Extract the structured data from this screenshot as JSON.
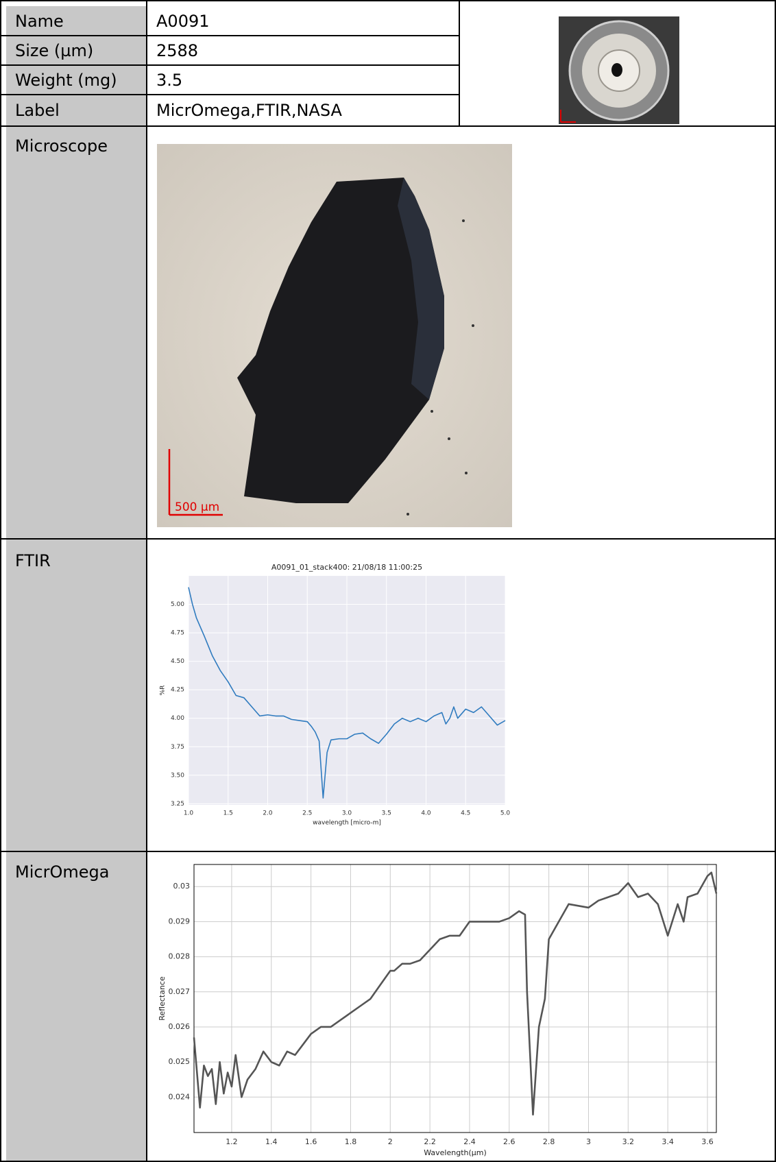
{
  "table": {
    "rows": [
      [
        "Name",
        "A0091"
      ],
      [
        "Size (µm)",
        "2588"
      ],
      [
        "Weight (mg)",
        "3.5"
      ],
      [
        "Label",
        "MicrOmega,FTIR,NASA"
      ]
    ],
    "sections": [
      "Microscope",
      "FTIR",
      "MicrOmega"
    ]
  },
  "microscope": {
    "scale_bar": "500 μm"
  },
  "chart_data": [
    {
      "type": "line",
      "title": "A0091_01_stack400: 21/08/18 11:00:25",
      "x_label": "wavelength [micro-m]",
      "y_label": "%R",
      "xlim": [
        1,
        5
      ],
      "ylim": [
        3.24,
        5.25
      ],
      "xticks": [
        {
          "value": 1,
          "label": "1.0"
        },
        {
          "value": 1.5,
          "label": "1.5"
        },
        {
          "value": 2,
          "label": "2.0"
        },
        {
          "value": 2.5,
          "label": "2.5"
        },
        {
          "value": 3,
          "label": "3.0"
        },
        {
          "value": 3.5,
          "label": "3.5"
        },
        {
          "value": 4,
          "label": "4.0"
        },
        {
          "value": 4.5,
          "label": "4.5"
        },
        {
          "value": 5,
          "label": "5.0"
        }
      ],
      "yticks": [
        {
          "value": 3.25,
          "label": "3.25"
        },
        {
          "value": 3.5,
          "label": "3.50"
        },
        {
          "value": 3.75,
          "label": "3.75"
        },
        {
          "value": 4,
          "label": "4.00"
        },
        {
          "value": 4.25,
          "label": "4.25"
        },
        {
          "value": 4.5,
          "label": "4.50"
        },
        {
          "value": 4.75,
          "label": "4.75"
        },
        {
          "value": 5,
          "label": "5.00"
        }
      ],
      "grid": true,
      "color": "#2f7bbf",
      "plot_background": "#eaeaf2",
      "grid_color": "#ffffff",
      "x": [
        1.0,
        1.05,
        1.1,
        1.2,
        1.3,
        1.4,
        1.5,
        1.6,
        1.7,
        1.8,
        1.9,
        2.0,
        2.1,
        2.2,
        2.3,
        2.4,
        2.5,
        2.55,
        2.6,
        2.65,
        2.7,
        2.75,
        2.8,
        2.9,
        3.0,
        3.1,
        3.2,
        3.3,
        3.4,
        3.5,
        3.6,
        3.7,
        3.8,
        3.9,
        4.0,
        4.1,
        4.2,
        4.25,
        4.3,
        4.35,
        4.4,
        4.5,
        4.6,
        4.7,
        4.8,
        4.9,
        5.0
      ],
      "values": [
        5.15,
        5.0,
        4.88,
        4.72,
        4.55,
        4.42,
        4.32,
        4.2,
        4.18,
        4.1,
        4.02,
        4.03,
        4.02,
        4.02,
        3.99,
        3.98,
        3.97,
        3.93,
        3.88,
        3.8,
        3.3,
        3.7,
        3.81,
        3.82,
        3.82,
        3.86,
        3.87,
        3.82,
        3.78,
        3.86,
        3.95,
        4.0,
        3.97,
        4.0,
        3.97,
        4.02,
        4.05,
        3.95,
        4.0,
        4.1,
        4.0,
        4.08,
        4.05,
        4.1,
        4.02,
        3.94,
        3.98
      ]
    },
    {
      "type": "line",
      "x_label": "Wavelength(μm)",
      "y_label": "Reflectance",
      "xlim": [
        1.01,
        3.645
      ],
      "ylim": [
        0.02299,
        0.03063
      ],
      "xticks": [
        1.2,
        1.4,
        1.6,
        1.8,
        2,
        2.2,
        2.4,
        2.6,
        2.8,
        3,
        3.2,
        3.4,
        3.6
      ],
      "yticks": [
        0.024,
        0.025,
        0.026,
        0.027,
        0.028,
        0.029,
        0.03
      ],
      "grid": true,
      "color": "#555555",
      "plot_background": "#ffffff",
      "grid_color": "#cccccc",
      "x": [
        1.01,
        1.04,
        1.06,
        1.08,
        1.1,
        1.12,
        1.14,
        1.16,
        1.18,
        1.2,
        1.22,
        1.25,
        1.28,
        1.32,
        1.36,
        1.4,
        1.44,
        1.48,
        1.52,
        1.56,
        1.6,
        1.65,
        1.7,
        1.75,
        1.8,
        1.85,
        1.9,
        1.95,
        2.0,
        2.02,
        2.06,
        2.1,
        2.15,
        2.2,
        2.25,
        2.3,
        2.35,
        2.4,
        2.45,
        2.5,
        2.55,
        2.6,
        2.65,
        2.68,
        2.69,
        2.72,
        2.75,
        2.78,
        2.8,
        2.82,
        2.85,
        2.9,
        3.0,
        3.05,
        3.1,
        3.15,
        3.2,
        3.25,
        3.3,
        3.35,
        3.4,
        3.45,
        3.48,
        3.5,
        3.55,
        3.6,
        3.62,
        3.645
      ],
      "values": [
        0.0257,
        0.0237,
        0.0249,
        0.0246,
        0.0248,
        0.0238,
        0.025,
        0.0241,
        0.0247,
        0.0243,
        0.0252,
        0.024,
        0.0245,
        0.0248,
        0.0253,
        0.025,
        0.0249,
        0.0253,
        0.0252,
        0.0255,
        0.0258,
        0.026,
        0.026,
        0.0262,
        0.0264,
        0.0266,
        0.0268,
        0.0272,
        0.0276,
        0.0276,
        0.0278,
        0.0278,
        0.0279,
        0.0282,
        0.0285,
        0.0286,
        0.0286,
        0.029,
        0.029,
        0.029,
        0.029,
        0.0291,
        0.0293,
        0.0292,
        0.027,
        0.0235,
        0.026,
        0.0268,
        0.0285,
        0.0287,
        0.029,
        0.0295,
        0.0294,
        0.0296,
        0.0297,
        0.0298,
        0.0301,
        0.0297,
        0.0298,
        0.0295,
        0.0286,
        0.0295,
        0.029,
        0.0297,
        0.0298,
        0.0303,
        0.0304,
        0.0298
      ]
    }
  ]
}
